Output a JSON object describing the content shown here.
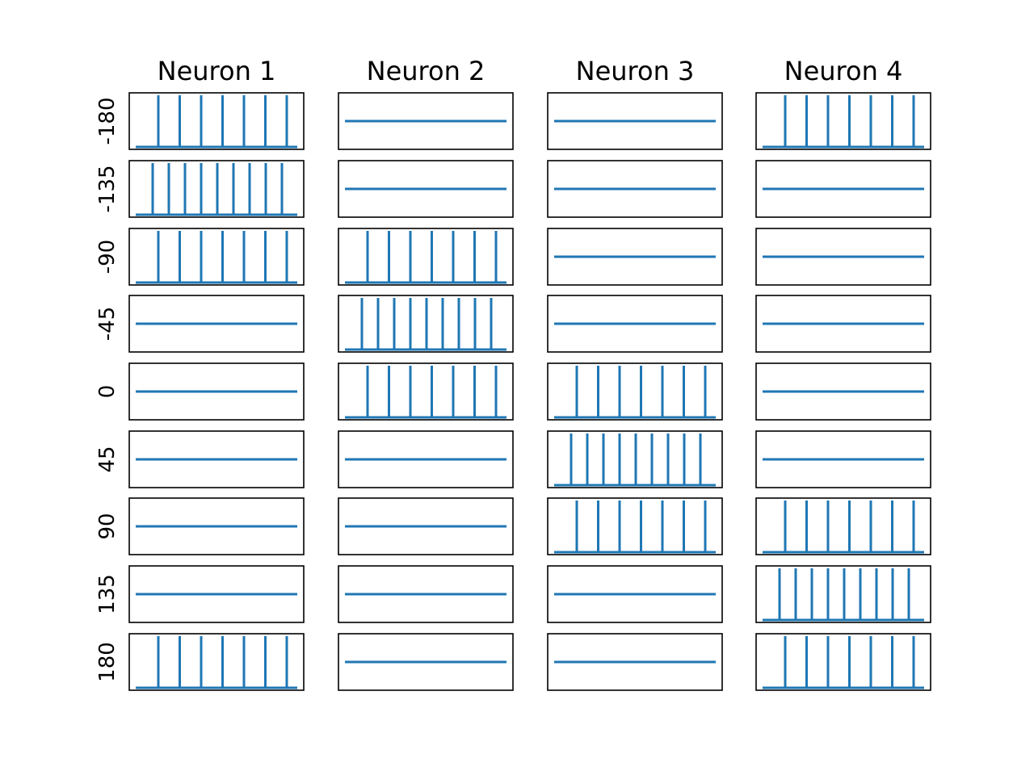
{
  "chart_data": {
    "type": "line",
    "description_units": "spike trains per neuron per direction",
    "colors": {
      "trace": "#1f77b4",
      "frame": "#000000",
      "background": "#ffffff"
    },
    "columns": [
      "Neuron 1",
      "Neuron 2",
      "Neuron 3",
      "Neuron 4"
    ],
    "rows": [
      "-180",
      "-135",
      "-90",
      "-45",
      "0",
      "45",
      "90",
      "135",
      "180"
    ],
    "spike_counts": [
      [
        7,
        0,
        0,
        7
      ],
      [
        9,
        0,
        0,
        0
      ],
      [
        7,
        7,
        0,
        0
      ],
      [
        0,
        9,
        0,
        0
      ],
      [
        0,
        7,
        7,
        0
      ],
      [
        0,
        0,
        9,
        0
      ],
      [
        0,
        0,
        7,
        7
      ],
      [
        0,
        0,
        0,
        9
      ],
      [
        7,
        0,
        0,
        7
      ]
    ],
    "grid": false,
    "ticks": false
  }
}
